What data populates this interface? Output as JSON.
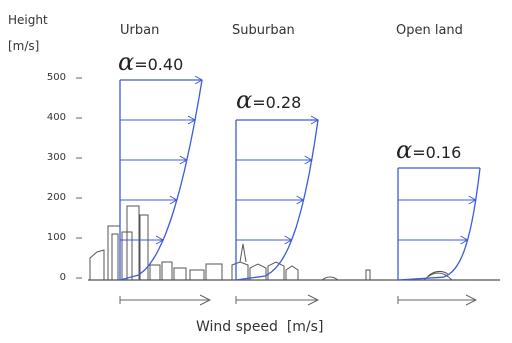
{
  "y_axis": {
    "title_line1": "Height",
    "title_line2": "[m/s]",
    "ticks": [
      "500",
      "400",
      "300",
      "200",
      "100",
      "0"
    ]
  },
  "x_axis": {
    "label": "Wind speed  [m/s]"
  },
  "panels": [
    {
      "title": "Urban",
      "alpha_symbol": "α",
      "alpha_value": "=0.40",
      "gradient_height": 500
    },
    {
      "title": "Suburban",
      "alpha_symbol": "α",
      "alpha_value": "=0.28",
      "gradient_height": 400
    },
    {
      "title": "Open  land",
      "alpha_symbol": "α",
      "alpha_value": "=0.16",
      "gradient_height": 280
    }
  ],
  "colors": {
    "profile": "#3b5bdb",
    "ground": "#555555",
    "text": "#333333"
  }
}
